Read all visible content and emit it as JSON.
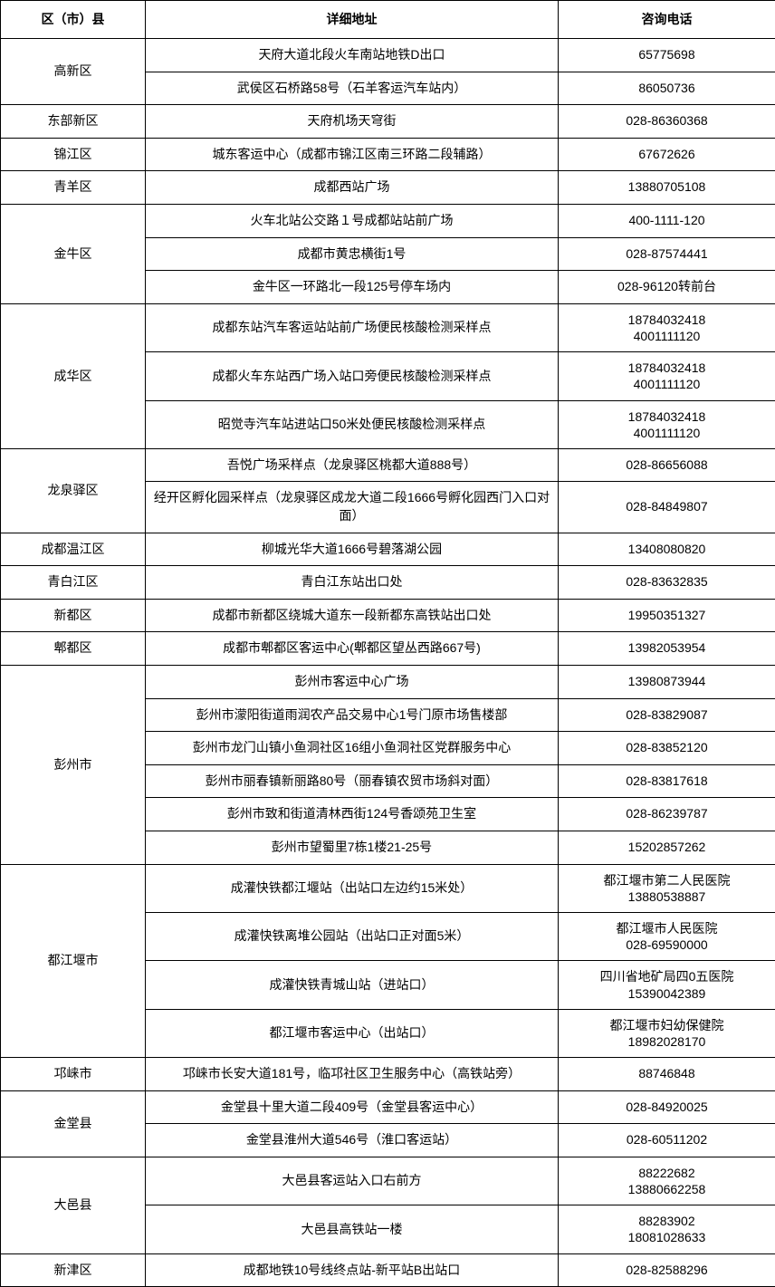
{
  "headers": {
    "district": "区（市）县",
    "address": "详细地址",
    "phone": "咨询电话"
  },
  "rows": [
    {
      "district": "高新区",
      "address": "天府大道北段火车南站地铁D出口",
      "phone": "65775698",
      "rowspan": 2
    },
    {
      "district": "",
      "address": "武侯区石桥路58号（石羊客运汽车站内）",
      "phone": "86050736"
    },
    {
      "district": "东部新区",
      "address": "天府机场天穹街",
      "phone": "028-86360368",
      "rowspan": 1
    },
    {
      "district": "锦江区",
      "address": "城东客运中心（成都市锦江区南三环路二段辅路）",
      "phone": "67672626",
      "rowspan": 1
    },
    {
      "district": "青羊区",
      "address": "成都西站广场",
      "phone": "13880705108",
      "rowspan": 1
    },
    {
      "district": "金牛区",
      "address": "火车北站公交路１号成都站站前广场",
      "phone": "400-1111-120",
      "rowspan": 3
    },
    {
      "district": "",
      "address": "成都市黄忠横街1号",
      "phone": "028-87574441"
    },
    {
      "district": "",
      "address": "金牛区一环路北一段125号停车场内",
      "phone": "028-96120转前台"
    },
    {
      "district": "成华区",
      "address": "成都东站汽车客运站站前广场便民核酸检测采样点",
      "phone": "18784032418\n4001111120",
      "rowspan": 3
    },
    {
      "district": "",
      "address": "成都火车东站西广场入站口旁便民核酸检测采样点",
      "phone": "18784032418\n4001111120"
    },
    {
      "district": "",
      "address": "昭觉寺汽车站进站口50米处便民核酸检测采样点",
      "phone": "18784032418\n4001111120"
    },
    {
      "district": "龙泉驿区",
      "address": "吾悦广场采样点（龙泉驿区桃都大道888号）",
      "phone": "028-86656088",
      "rowspan": 2
    },
    {
      "district": "",
      "address": "经开区孵化园采样点（龙泉驿区成龙大道二段1666号孵化园西门入口对面）",
      "phone": "028-84849807"
    },
    {
      "district": "成都温江区",
      "address": "柳城光华大道1666号碧落湖公园",
      "phone": "13408080820",
      "rowspan": 1
    },
    {
      "district": "青白江区",
      "address": "青白江东站出口处",
      "phone": "028-83632835",
      "rowspan": 1
    },
    {
      "district": "新都区",
      "address": "成都市新都区绕城大道东一段新都东高铁站出口处",
      "phone": "19950351327",
      "rowspan": 1
    },
    {
      "district": "郫都区",
      "address": "成都市郫都区客运中心(郫都区望丛西路667号)",
      "phone": "13982053954",
      "rowspan": 1
    },
    {
      "district": "彭州市",
      "address": "彭州市客运中心广场",
      "phone": "13980873944",
      "rowspan": 6
    },
    {
      "district": "",
      "address": "彭州市濛阳街道雨润农产品交易中心1号门原市场售楼部",
      "phone": "028-83829087"
    },
    {
      "district": "",
      "address": "彭州市龙门山镇小鱼洞社区16组小鱼洞社区党群服务中心",
      "phone": "028-83852120"
    },
    {
      "district": "",
      "address": "彭州市丽春镇新丽路80号（丽春镇农贸市场斜对面）",
      "phone": "028-83817618"
    },
    {
      "district": "",
      "address": "彭州市致和街道清林西街124号香颂苑卫生室",
      "phone": "028-86239787"
    },
    {
      "district": "",
      "address": "彭州市望蜀里7栋1楼21-25号",
      "phone": "15202857262"
    },
    {
      "district": "都江堰市",
      "address": "成灌快铁都江堰站（出站口左边约15米处）",
      "phone": "都江堰市第二人民医院\n13880538887",
      "rowspan": 4
    },
    {
      "district": "",
      "address": "成灌快铁离堆公园站（出站口正对面5米）",
      "phone": "都江堰市人民医院\n028-69590000"
    },
    {
      "district": "",
      "address": "成灌快铁青城山站（进站口）",
      "phone": "四川省地矿局四0五医院\n15390042389"
    },
    {
      "district": "",
      "address": "都江堰市客运中心（出站口）",
      "phone": "都江堰市妇幼保健院\n18982028170"
    },
    {
      "district": "邛崃市",
      "address": "邛崃市长安大道181号，临邛社区卫生服务中心（高铁站旁）",
      "phone": "88746848",
      "rowspan": 1
    },
    {
      "district": "金堂县",
      "address": "金堂县十里大道二段409号（金堂县客运中心）",
      "phone": "028-84920025",
      "rowspan": 2
    },
    {
      "district": "",
      "address": "金堂县淮州大道546号（淮口客运站）",
      "phone": "028-60511202"
    },
    {
      "district": "大邑县",
      "address": "大邑县客运站入口右前方",
      "phone": "88222682\n13880662258",
      "rowspan": 2
    },
    {
      "district": "",
      "address": "大邑县高铁站一楼",
      "phone": "88283902\n18081028633"
    },
    {
      "district": "新津区",
      "address": "成都地铁10号线终点站-新平站B出站口",
      "phone": "028-82588296",
      "rowspan": 1
    }
  ]
}
